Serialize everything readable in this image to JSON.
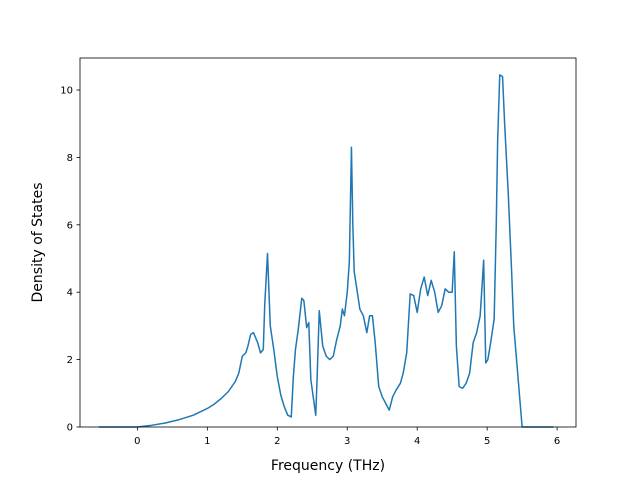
{
  "chart_data": {
    "type": "line",
    "title": "",
    "xlabel": "Frequency (THz)",
    "ylabel": "Density of States",
    "xlim": [
      -0.82,
      6.27
    ],
    "ylim": [
      0,
      10.95
    ],
    "xticks": [
      0,
      1,
      2,
      3,
      4,
      5,
      6
    ],
    "yticks": [
      0,
      2,
      4,
      6,
      8,
      10
    ],
    "grid": false,
    "line_color": "#1f77b4",
    "series": [
      {
        "x": [
          -0.55,
          -0.3,
          0,
          0.2,
          0.4,
          0.6,
          0.8,
          1.0,
          1.1,
          1.2,
          1.3,
          1.4,
          1.45,
          1.5,
          1.55,
          1.58,
          1.62,
          1.66,
          1.72,
          1.76,
          1.8,
          1.82,
          1.86,
          1.9,
          1.95,
          2.0,
          2.05,
          2.1,
          2.15,
          2.2,
          2.23,
          2.26,
          2.3,
          2.35,
          2.38,
          2.42,
          2.45,
          2.48,
          2.52,
          2.55,
          2.57,
          2.6,
          2.65,
          2.7,
          2.75,
          2.8,
          2.85,
          2.9,
          2.93,
          2.96,
          3.0,
          3.03,
          3.06,
          3.08,
          3.1,
          3.13,
          3.18,
          3.23,
          3.28,
          3.32,
          3.36,
          3.4,
          3.45,
          3.5,
          3.55,
          3.6,
          3.65,
          3.7,
          3.76,
          3.8,
          3.85,
          3.9,
          3.95,
          4.0,
          4.05,
          4.1,
          4.15,
          4.2,
          4.25,
          4.3,
          4.35,
          4.4,
          4.45,
          4.5,
          4.53,
          4.56,
          4.6,
          4.65,
          4.7,
          4.75,
          4.8,
          4.85,
          4.9,
          4.95,
          4.98,
          5.01,
          5.05,
          5.1,
          5.13,
          5.15,
          5.18,
          5.22,
          5.25,
          5.3,
          5.35,
          5.38,
          5.42,
          5.5,
          5.7,
          5.95
        ],
        "y": [
          0,
          0,
          0,
          0.05,
          0.12,
          0.22,
          0.35,
          0.55,
          0.68,
          0.85,
          1.05,
          1.35,
          1.6,
          2.1,
          2.2,
          2.4,
          2.75,
          2.8,
          2.5,
          2.2,
          2.3,
          3.6,
          5.15,
          3.0,
          2.3,
          1.5,
          0.95,
          0.6,
          0.35,
          0.3,
          1.5,
          2.3,
          2.9,
          3.82,
          3.75,
          2.95,
          3.1,
          1.4,
          0.8,
          0.35,
          1.5,
          3.45,
          2.4,
          2.1,
          2.0,
          2.1,
          2.6,
          3.0,
          3.5,
          3.3,
          4.0,
          4.9,
          8.3,
          6.0,
          4.6,
          4.2,
          3.5,
          3.3,
          2.8,
          3.3,
          3.3,
          2.5,
          1.2,
          0.9,
          0.7,
          0.5,
          0.9,
          1.1,
          1.3,
          1.6,
          2.2,
          3.95,
          3.9,
          3.4,
          4.1,
          4.45,
          3.9,
          4.35,
          4.0,
          3.4,
          3.6,
          4.1,
          4.0,
          4.0,
          5.2,
          2.4,
          1.2,
          1.15,
          1.3,
          1.6,
          2.5,
          2.8,
          3.3,
          4.95,
          1.9,
          2.0,
          2.5,
          3.2,
          6.0,
          8.5,
          10.45,
          10.4,
          9.0,
          7.0,
          4.6,
          3.0,
          2.0,
          0,
          0,
          0
        ]
      }
    ]
  }
}
